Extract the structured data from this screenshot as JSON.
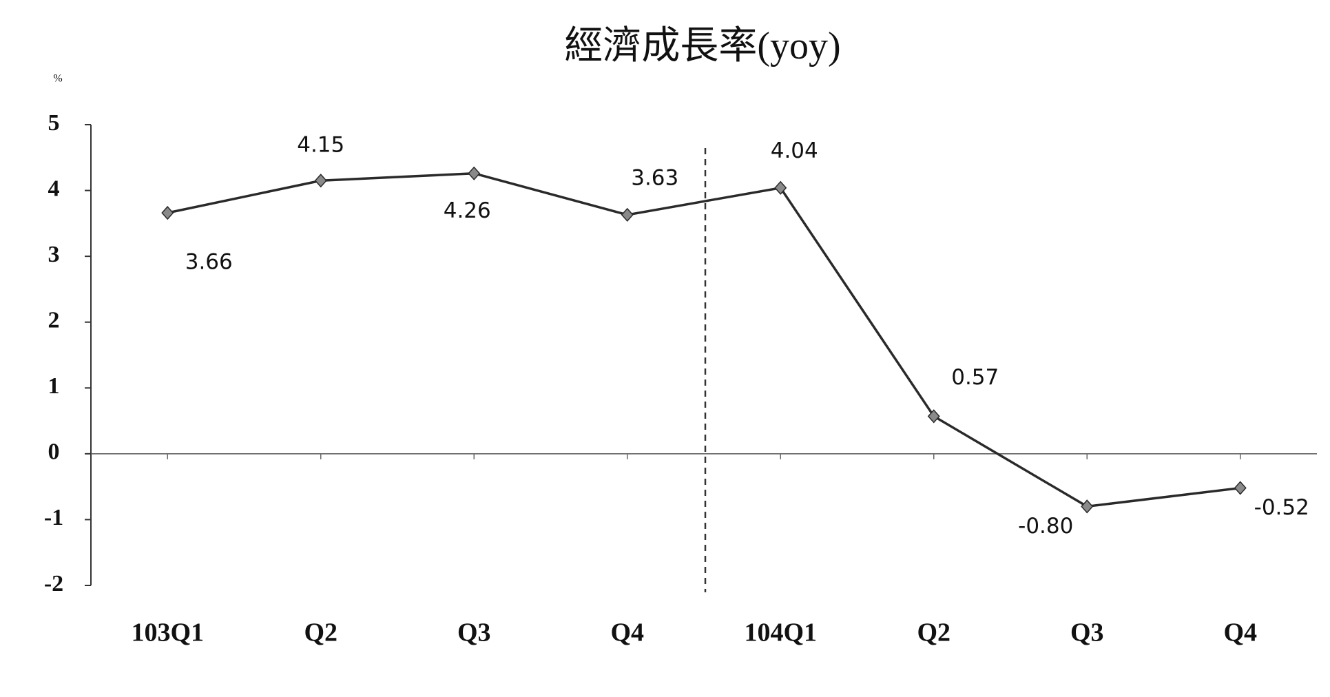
{
  "chart_data": {
    "type": "line",
    "title": "經濟成長率(yoy)",
    "y_label": "%",
    "categories": [
      "103Q1",
      "Q2",
      "Q3",
      "Q4",
      "104Q1",
      "Q2",
      "Q3",
      "Q4"
    ],
    "values": [
      3.66,
      4.15,
      4.26,
      3.63,
      4.04,
      0.57,
      -0.8,
      -0.52
    ],
    "value_labels": [
      "3.66",
      "4.15",
      "4.26",
      "3.63",
      "4.04",
      "0.57",
      "-0.80",
      "-0.52"
    ],
    "color": "#2a2a2a",
    "marker_color": "#8a8a8a",
    "ylim": [
      -2,
      5
    ],
    "yticks": [
      -2,
      -1,
      0,
      1,
      2,
      3,
      4,
      5
    ],
    "grid": false
  }
}
